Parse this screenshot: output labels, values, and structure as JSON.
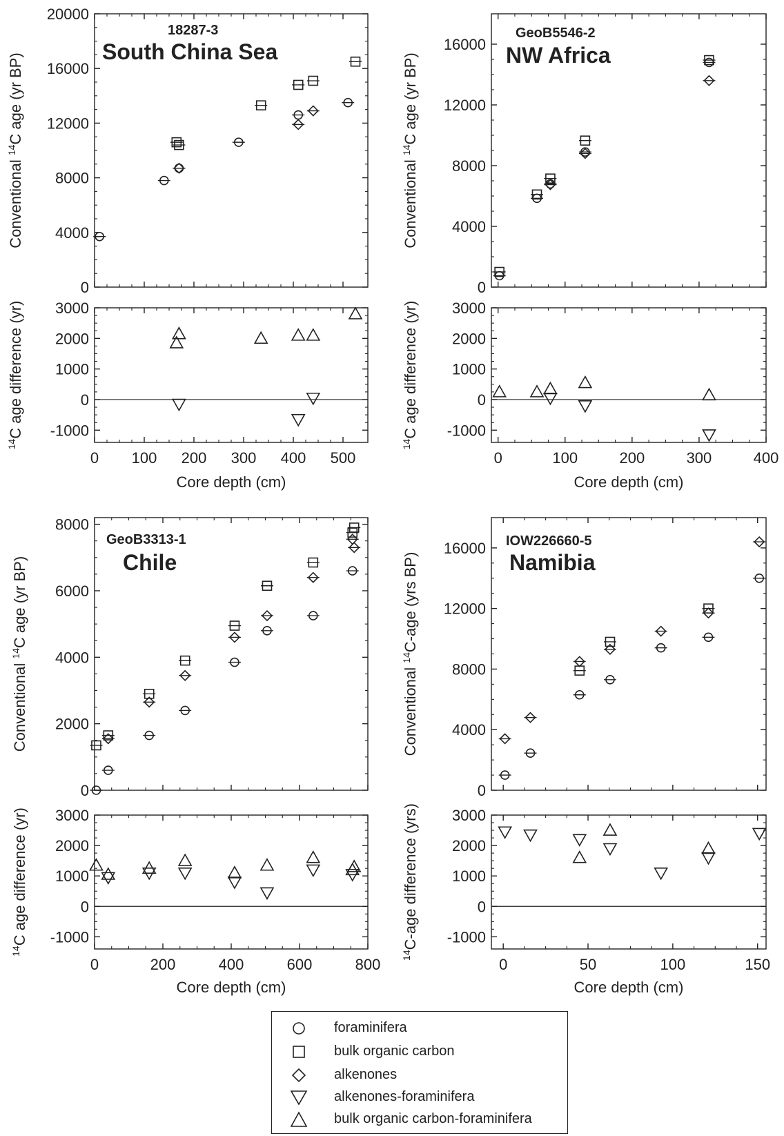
{
  "colors": {
    "ink": "#222222",
    "background": "#ffffff"
  },
  "legend": {
    "items": [
      {
        "symbol": "circle",
        "label": "foraminifera"
      },
      {
        "symbol": "square",
        "label": "bulk organic carbon"
      },
      {
        "symbol": "diamond",
        "label": "alkenones"
      },
      {
        "symbol": "triangle-down",
        "label": "alkenones-foraminifera"
      },
      {
        "symbol": "triangle-up",
        "label": "bulk organic carbon-foraminifera"
      }
    ]
  },
  "chart_data": [
    {
      "type": "scatter",
      "site": "18287-3",
      "region": "South China Sea",
      "xlabel": "Core depth (cm)",
      "xlim": [
        0,
        550
      ],
      "xticks": [
        0,
        100,
        200,
        300,
        400,
        500
      ],
      "top": {
        "ylabel": "Conventional 14C age (yr BP)",
        "ylim": [
          0,
          20000
        ],
        "yticks": [
          0,
          4000,
          8000,
          12000,
          16000,
          20000
        ],
        "series": [
          {
            "name": "foraminifera",
            "marker": "circle",
            "x": [
              10,
              140,
              170,
              290,
              410,
              510
            ],
            "y": [
              3700,
              7800,
              8700,
              10600,
              12600,
              13500
            ]
          },
          {
            "name": "bulk organic carbon",
            "marker": "square",
            "x": [
              165,
              170,
              335,
              410,
              440,
              525
            ],
            "y": [
              10600,
              10400,
              13300,
              14800,
              15100,
              16500
            ]
          },
          {
            "name": "alkenones",
            "marker": "diamond",
            "x": [
              170,
              410,
              440
            ],
            "y": [
              8700,
              11900,
              12900
            ]
          }
        ]
      },
      "bottom": {
        "ylabel": "14C age difference (yr)",
        "ylim": [
          -1400,
          3000
        ],
        "yticks": [
          -1000,
          0,
          1000,
          2000,
          3000
        ],
        "series": [
          {
            "name": "alkenones-foraminifera",
            "marker": "triangle-down",
            "x": [
              170,
              410,
              440
            ],
            "y": [
              -150,
              -650,
              50
            ]
          },
          {
            "name": "bulk organic carbon-foraminifera",
            "marker": "triangle-up",
            "x": [
              165,
              170,
              335,
              410,
              440,
              525
            ],
            "y": [
              1850,
              2150,
              2000,
              2100,
              2100,
              2800
            ]
          }
        ]
      }
    },
    {
      "type": "scatter",
      "site": "GeoB5546-2",
      "region": "NW Africa",
      "xlabel": "Core depth (cm)",
      "xlim": [
        -10,
        400
      ],
      "xticks": [
        0,
        100,
        200,
        300,
        400
      ],
      "top": {
        "ylabel": "Conventional 14C age (yr BP)",
        "ylim": [
          0,
          18000
        ],
        "yticks": [
          0,
          4000,
          8000,
          12000,
          16000
        ],
        "series": [
          {
            "name": "foraminifera",
            "marker": "circle",
            "x": [
              2,
              58,
              78,
              130,
              315
            ],
            "y": [
              750,
              5850,
              6800,
              8900,
              14800
            ]
          },
          {
            "name": "bulk organic carbon",
            "marker": "square",
            "x": [
              2,
              58,
              78,
              130,
              315
            ],
            "y": [
              1000,
              6100,
              7150,
              9650,
              14950
            ]
          },
          {
            "name": "alkenones",
            "marker": "diamond",
            "x": [
              78,
              130,
              315
            ],
            "y": [
              6750,
              8800,
              13600
            ]
          }
        ]
      },
      "bottom": {
        "ylabel": "14C age difference (yr)",
        "ylim": [
          -1400,
          3000
        ],
        "yticks": [
          -1000,
          0,
          1000,
          2000,
          3000
        ],
        "series": [
          {
            "name": "alkenones-foraminifera",
            "marker": "triangle-down",
            "x": [
              78,
              130,
              315
            ],
            "y": [
              50,
              -200,
              -1150
            ]
          },
          {
            "name": "bulk organic carbon-foraminifera",
            "marker": "triangle-up",
            "x": [
              2,
              58,
              78,
              130,
              315
            ],
            "y": [
              250,
              250,
              350,
              550,
              150
            ]
          }
        ]
      }
    },
    {
      "type": "scatter",
      "site": "GeoB3313-1",
      "region": "Chile",
      "xlabel": "Core depth (cm)",
      "xlim": [
        0,
        800
      ],
      "xticks": [
        0,
        200,
        400,
        600,
        800
      ],
      "top": {
        "ylabel": "Conventional 14C age (yr BP)",
        "ylim": [
          0,
          8200
        ],
        "yticks": [
          0,
          2000,
          4000,
          6000,
          8000
        ],
        "series": [
          {
            "name": "foraminifera",
            "marker": "circle",
            "x": [
              5,
              40,
              160,
              265,
              410,
              505,
              640,
              755
            ],
            "y": [
              0,
              600,
              1650,
              2400,
              3850,
              4800,
              5250,
              6600
            ]
          },
          {
            "name": "bulk organic carbon",
            "marker": "square",
            "x": [
              5,
              40,
              160,
              265,
              410,
              505,
              640,
              755,
              760
            ],
            "y": [
              1350,
              1650,
              2900,
              3900,
              4950,
              6150,
              6850,
              7750,
              7900
            ]
          },
          {
            "name": "alkenones",
            "marker": "diamond",
            "x": [
              40,
              160,
              265,
              410,
              505,
              640,
              755,
              760
            ],
            "y": [
              1550,
              2650,
              3450,
              4600,
              5250,
              6400,
              7550,
              7300
            ]
          }
        ]
      },
      "bottom": {
        "ylabel": "14C age difference (yr)",
        "ylim": [
          -1400,
          3000
        ],
        "yticks": [
          -1000,
          0,
          1000,
          2000,
          3000
        ],
        "series": [
          {
            "name": "alkenones-foraminifera",
            "marker": "triangle-down",
            "x": [
              40,
              160,
              265,
              410,
              505,
              640,
              755
            ],
            "y": [
              950,
              1100,
              1100,
              800,
              450,
              1200,
              1050
            ]
          },
          {
            "name": "bulk organic carbon-foraminifera",
            "marker": "triangle-up",
            "x": [
              5,
              40,
              160,
              265,
              410,
              505,
              640,
              755,
              760
            ],
            "y": [
              1350,
              1050,
              1250,
              1500,
              1100,
              1350,
              1600,
              1200,
              1300
            ]
          }
        ]
      }
    },
    {
      "type": "scatter",
      "site": "IOW226660-5",
      "region": "Namibia",
      "xlabel": "Core depth (cm)",
      "xlim": [
        -7,
        155
      ],
      "xticks": [
        0,
        50,
        100,
        150
      ],
      "top": {
        "ylabel": "Conventional 14C-age (yrs BP)",
        "ylim": [
          0,
          18000
        ],
        "yticks": [
          0,
          4000,
          8000,
          12000,
          16000
        ],
        "series": [
          {
            "name": "foraminifera",
            "marker": "circle",
            "x": [
              1,
              16,
              45,
              63,
              93,
              121,
              151
            ],
            "y": [
              1000,
              2450,
              6300,
              7300,
              9400,
              10100,
              14000
            ]
          },
          {
            "name": "bulk organic carbon",
            "marker": "square",
            "x": [
              45,
              63,
              121
            ],
            "y": [
              7900,
              9800,
              12000
            ]
          },
          {
            "name": "alkenones",
            "marker": "diamond",
            "x": [
              1,
              16,
              45,
              63,
              93,
              121,
              151
            ],
            "y": [
              3400,
              4800,
              8500,
              9300,
              10500,
              11700,
              16400
            ]
          }
        ]
      },
      "bottom": {
        "ylabel": "14C-age difference (yrs)",
        "ylim": [
          -1400,
          3000
        ],
        "yticks": [
          -1000,
          0,
          1000,
          2000,
          3000
        ],
        "series": [
          {
            "name": "alkenones-foraminifera",
            "marker": "triangle-down",
            "x": [
              1,
              16,
              45,
              63,
              93,
              121,
              151
            ],
            "y": [
              2450,
              2350,
              2200,
              1900,
              1100,
              1600,
              2400
            ]
          },
          {
            "name": "bulk organic carbon-foraminifera",
            "marker": "triangle-up",
            "x": [
              45,
              63,
              121
            ],
            "y": [
              1600,
              2500,
              1900
            ]
          }
        ]
      }
    }
  ]
}
